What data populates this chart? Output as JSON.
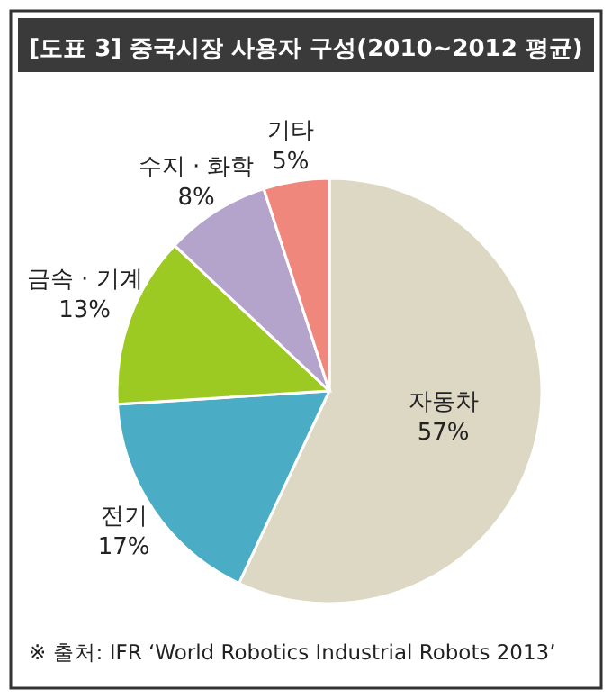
{
  "chart_data": {
    "type": "pie",
    "title": "[도표 3] 중국시장 사용자 구성(2010~2012 평균)",
    "categories": [
      "자동차",
      "전기",
      "금속 · 기계",
      "수지 · 화학",
      "기타"
    ],
    "values": [
      57,
      17,
      13,
      8,
      5
    ],
    "colors": [
      "#ddd8c3",
      "#4bacc6",
      "#9dca22",
      "#b4a3cb",
      "#f0877c"
    ],
    "value_labels": [
      "57%",
      "17%",
      "13%",
      "8%",
      "5%"
    ],
    "annotations": [
      "※ 출처: IFR ‘World Robotics Industrial Robots 2013’"
    ]
  }
}
